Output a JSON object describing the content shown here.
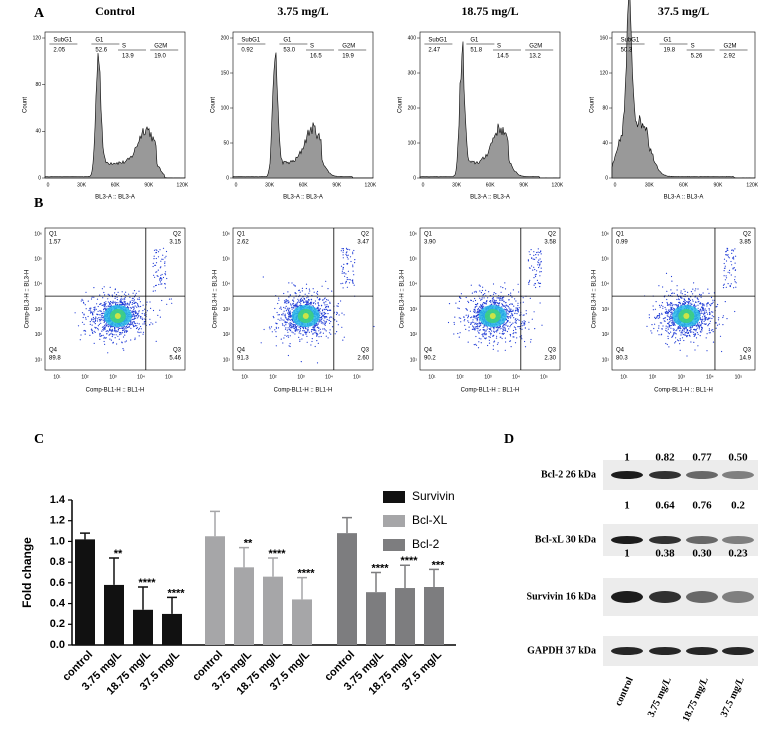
{
  "panel_labels": [
    "A",
    "B",
    "C",
    "D"
  ],
  "flow_histograms": {
    "titles": [
      "Control",
      "3.75 mg/L",
      "18.75 mg/L",
      "37.5 mg/L"
    ],
    "x_label": "BL3-A :: BL3-A",
    "y_label": "Count",
    "xticks": [
      "0",
      "30K",
      "60K",
      "90K",
      "120K"
    ],
    "plots": [
      {
        "yticks": [
          0,
          40,
          80,
          120
        ],
        "gates": [
          {
            "name": "SubG1",
            "value": "2.05"
          },
          {
            "name": "G1",
            "value": "52.6"
          },
          {
            "name": "S",
            "value": "13.9"
          },
          {
            "name": "G2M",
            "value": "19.0"
          }
        ]
      },
      {
        "yticks": [
          0,
          50,
          100,
          150,
          200
        ],
        "gates": [
          {
            "name": "SubG1",
            "value": "0.92"
          },
          {
            "name": "G1",
            "value": "53.0"
          },
          {
            "name": "S",
            "value": "16.5"
          },
          {
            "name": "G2M",
            "value": "19.9"
          }
        ]
      },
      {
        "yticks": [
          0,
          100,
          200,
          300,
          400
        ],
        "gates": [
          {
            "name": "SubG1",
            "value": "2.47"
          },
          {
            "name": "G1",
            "value": "51.8"
          },
          {
            "name": "S",
            "value": "14.5"
          },
          {
            "name": "G2M",
            "value": "13.2"
          }
        ]
      },
      {
        "yticks": [
          0,
          40,
          80,
          120,
          160
        ],
        "gates": [
          {
            "name": "SubG1",
            "value": "50.3"
          },
          {
            "name": "G1",
            "value": "19.8"
          },
          {
            "name": "S",
            "value": "5.26"
          },
          {
            "name": "G2M",
            "value": "2.92"
          }
        ]
      }
    ]
  },
  "dot_plots": {
    "x_label": "Comp-BL1-H :: BL1-H",
    "y_label": "Comp-BL3-H :: BL3-H",
    "xticks": [
      "10¹",
      "10²",
      "10³",
      "10⁴",
      "10⁵"
    ],
    "yticks": [
      "10¹",
      "10²",
      "10³",
      "10⁴",
      "10⁵",
      "10⁶"
    ],
    "plots": [
      {
        "quadrants": [
          {
            "name": "Q1",
            "value": "1.57"
          },
          {
            "name": "Q2",
            "value": "3.15"
          },
          {
            "name": "Q3",
            "value": "5.46"
          },
          {
            "name": "Q4",
            "value": "89.8"
          }
        ]
      },
      {
        "quadrants": [
          {
            "name": "Q1",
            "value": "2.62"
          },
          {
            "name": "Q2",
            "value": "3.47"
          },
          {
            "name": "Q3",
            "value": "2.60"
          },
          {
            "name": "Q4",
            "value": "91.3"
          }
        ]
      },
      {
        "quadrants": [
          {
            "name": "Q1",
            "value": "3.90"
          },
          {
            "name": "Q2",
            "value": "3.58"
          },
          {
            "name": "Q3",
            "value": "2.30"
          },
          {
            "name": "Q4",
            "value": "90.2"
          }
        ]
      },
      {
        "quadrants": [
          {
            "name": "Q1",
            "value": "0.99"
          },
          {
            "name": "Q2",
            "value": "3.85"
          },
          {
            "name": "Q3",
            "value": "14.9"
          },
          {
            "name": "Q4",
            "value": "80.3"
          }
        ]
      }
    ]
  },
  "chart_data": {
    "type": "bar",
    "y_label": "Fold change",
    "categories": [
      "control",
      "3.75 mg/L",
      "18.75 mg/L",
      "37.5 mg/L"
    ],
    "ylim": [
      0,
      1.4
    ],
    "yticks": [
      {
        "value": 0,
        "label": "0.0"
      },
      0.2,
      0.4,
      0.6,
      0.8,
      {
        "value": 1,
        "label": "1.0"
      },
      1.2,
      1.4
    ],
    "series": [
      {
        "name": "Survivin",
        "color": "#111111",
        "values": [
          1.02,
          0.58,
          0.34,
          0.3
        ],
        "errors": [
          0.06,
          0.26,
          0.22,
          0.16
        ],
        "significance": [
          null,
          "**",
          "****",
          "****"
        ]
      },
      {
        "name": "Bcl-XL",
        "color": "#a6a6a8",
        "values": [
          1.05,
          0.75,
          0.66,
          0.44
        ],
        "errors": [
          0.24,
          0.19,
          0.18,
          0.21
        ],
        "significance": [
          null,
          "**",
          "****",
          "****"
        ]
      },
      {
        "name": "Bcl-2",
        "color": "#7d7d7f",
        "values": [
          1.08,
          0.51,
          0.55,
          0.56
        ],
        "errors": [
          0.15,
          0.19,
          0.22,
          0.17
        ],
        "significance": [
          null,
          "****",
          "****",
          "***"
        ]
      }
    ]
  },
  "western_blot": {
    "lanes": [
      "control",
      "3.75 mg/L",
      "18.75 mg/L",
      "37.5 mg/L"
    ],
    "blots": [
      {
        "label": "Bcl-2 26 kDa",
        "ratios": [
          "1",
          "0.82",
          "0.77",
          "0.50"
        ]
      },
      {
        "label": "Bcl-xL 30 kDa",
        "ratios": [
          "1",
          "0.64",
          "0.76",
          "0.2"
        ]
      },
      {
        "label": "Survivin 16 kDa",
        "ratios": [
          "1",
          "0.38",
          "0.30",
          "0.23"
        ]
      },
      {
        "label": "GAPDH 37 kDa"
      }
    ]
  }
}
